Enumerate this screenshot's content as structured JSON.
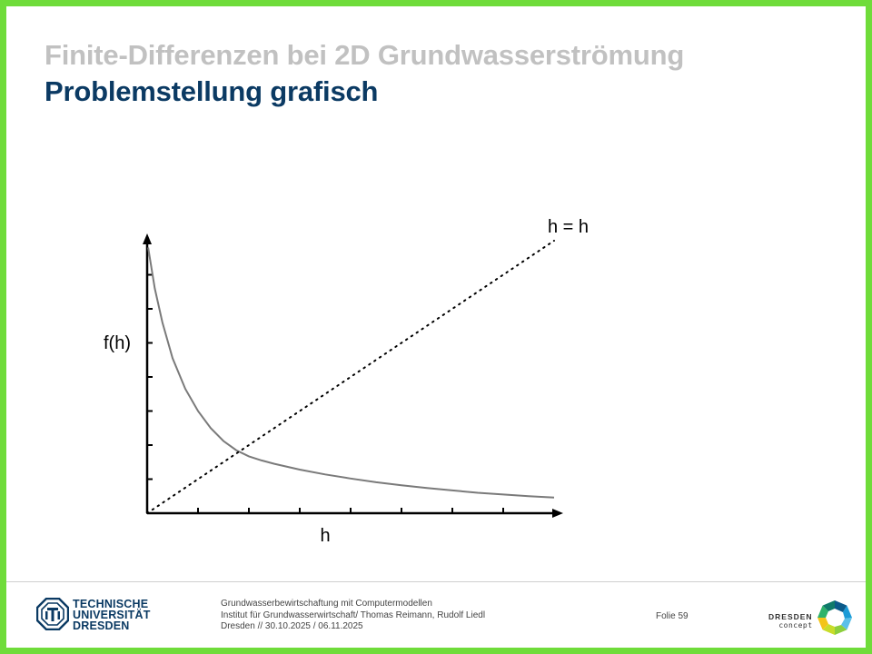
{
  "slide": {
    "title": "Finite-Differenzen bei 2D Grundwasserströmung",
    "subtitle": "Problemstellung grafisch"
  },
  "chart_data": {
    "type": "line",
    "xlabel": "h",
    "ylabel": "f(h)",
    "xlim": [
      0,
      8
    ],
    "ylim": [
      0,
      8
    ],
    "x_ticks": 8,
    "y_ticks": 8,
    "grid": false,
    "series": [
      {
        "name": "",
        "style": "solid",
        "color": "#7a7a7a",
        "x": [
          0.02,
          0.15,
          0.3,
          0.5,
          0.75,
          1.0,
          1.25,
          1.5,
          1.75,
          2.0,
          2.25,
          2.5,
          3.0,
          3.5,
          4.0,
          4.5,
          5.0,
          5.5,
          6.0,
          6.5,
          7.0,
          7.5,
          8.0
        ],
        "y": [
          7.8,
          6.6,
          5.6,
          4.55,
          3.65,
          3.0,
          2.5,
          2.12,
          1.85,
          1.67,
          1.55,
          1.45,
          1.28,
          1.14,
          1.02,
          0.91,
          0.82,
          0.74,
          0.67,
          0.6,
          0.55,
          0.5,
          0.46
        ]
      },
      {
        "name": "h = h",
        "style": "dotted",
        "color": "#000000",
        "x": [
          0,
          8
        ],
        "y": [
          0,
          8
        ]
      }
    ],
    "annotations": [
      {
        "text": "h = h"
      }
    ]
  },
  "footer": {
    "logo_left_lines": [
      "TECHNISCHE",
      "UNIVERSITÄT",
      "DRESDEN"
    ],
    "course": "Grundwasserbewirtschaftung mit Computermodellen",
    "institute": "Institut für Grundwasserwirtschaft/ Thomas Reimann, Rudolf Liedl",
    "place_date": "Dresden // 30.10.2025 / 06.11.2025",
    "slide_label": "Folie 59",
    "logo_right_main": "DRESDEN",
    "logo_right_sub": "concept"
  },
  "colors": {
    "border": "#6fdc3a",
    "title_grey": "#c1c1c1",
    "title_blue": "#0b3a63"
  }
}
